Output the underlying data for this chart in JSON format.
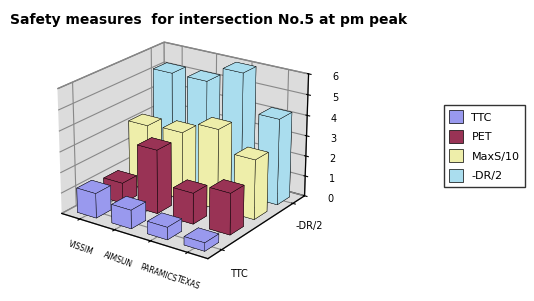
{
  "title": "Safety measures  for intersection No.5 at pm peak",
  "simulators": [
    "VISSIM",
    "AIMSUN",
    "PARAMICS",
    "TEXAS"
  ],
  "measures": [
    "TTC",
    "PET",
    "MaxS/10",
    "-DR/2"
  ],
  "values": {
    "VISSIM": [
      1.2,
      1.0,
      3.2,
      5.2
    ],
    "AIMSUN": [
      0.9,
      3.1,
      3.3,
      5.2
    ],
    "PARAMICS": [
      0.6,
      1.5,
      3.9,
      6.0
    ],
    "TEXAS": [
      0.4,
      2.0,
      2.9,
      4.2
    ]
  },
  "bar_colors": [
    "#9999ee",
    "#993355",
    "#eeeeaa",
    "#aaddee"
  ],
  "zlim": [
    0,
    6
  ],
  "zticks": [
    0,
    1,
    2,
    3,
    4,
    5,
    6
  ],
  "xaxis_label": "TTC",
  "yaxis_label": "-DR/2",
  "pane_color": "#bbbbbb",
  "legend_labels": [
    "TTC",
    "PET",
    "MaxS/10",
    "-DR/2"
  ],
  "title_fontsize": 10
}
